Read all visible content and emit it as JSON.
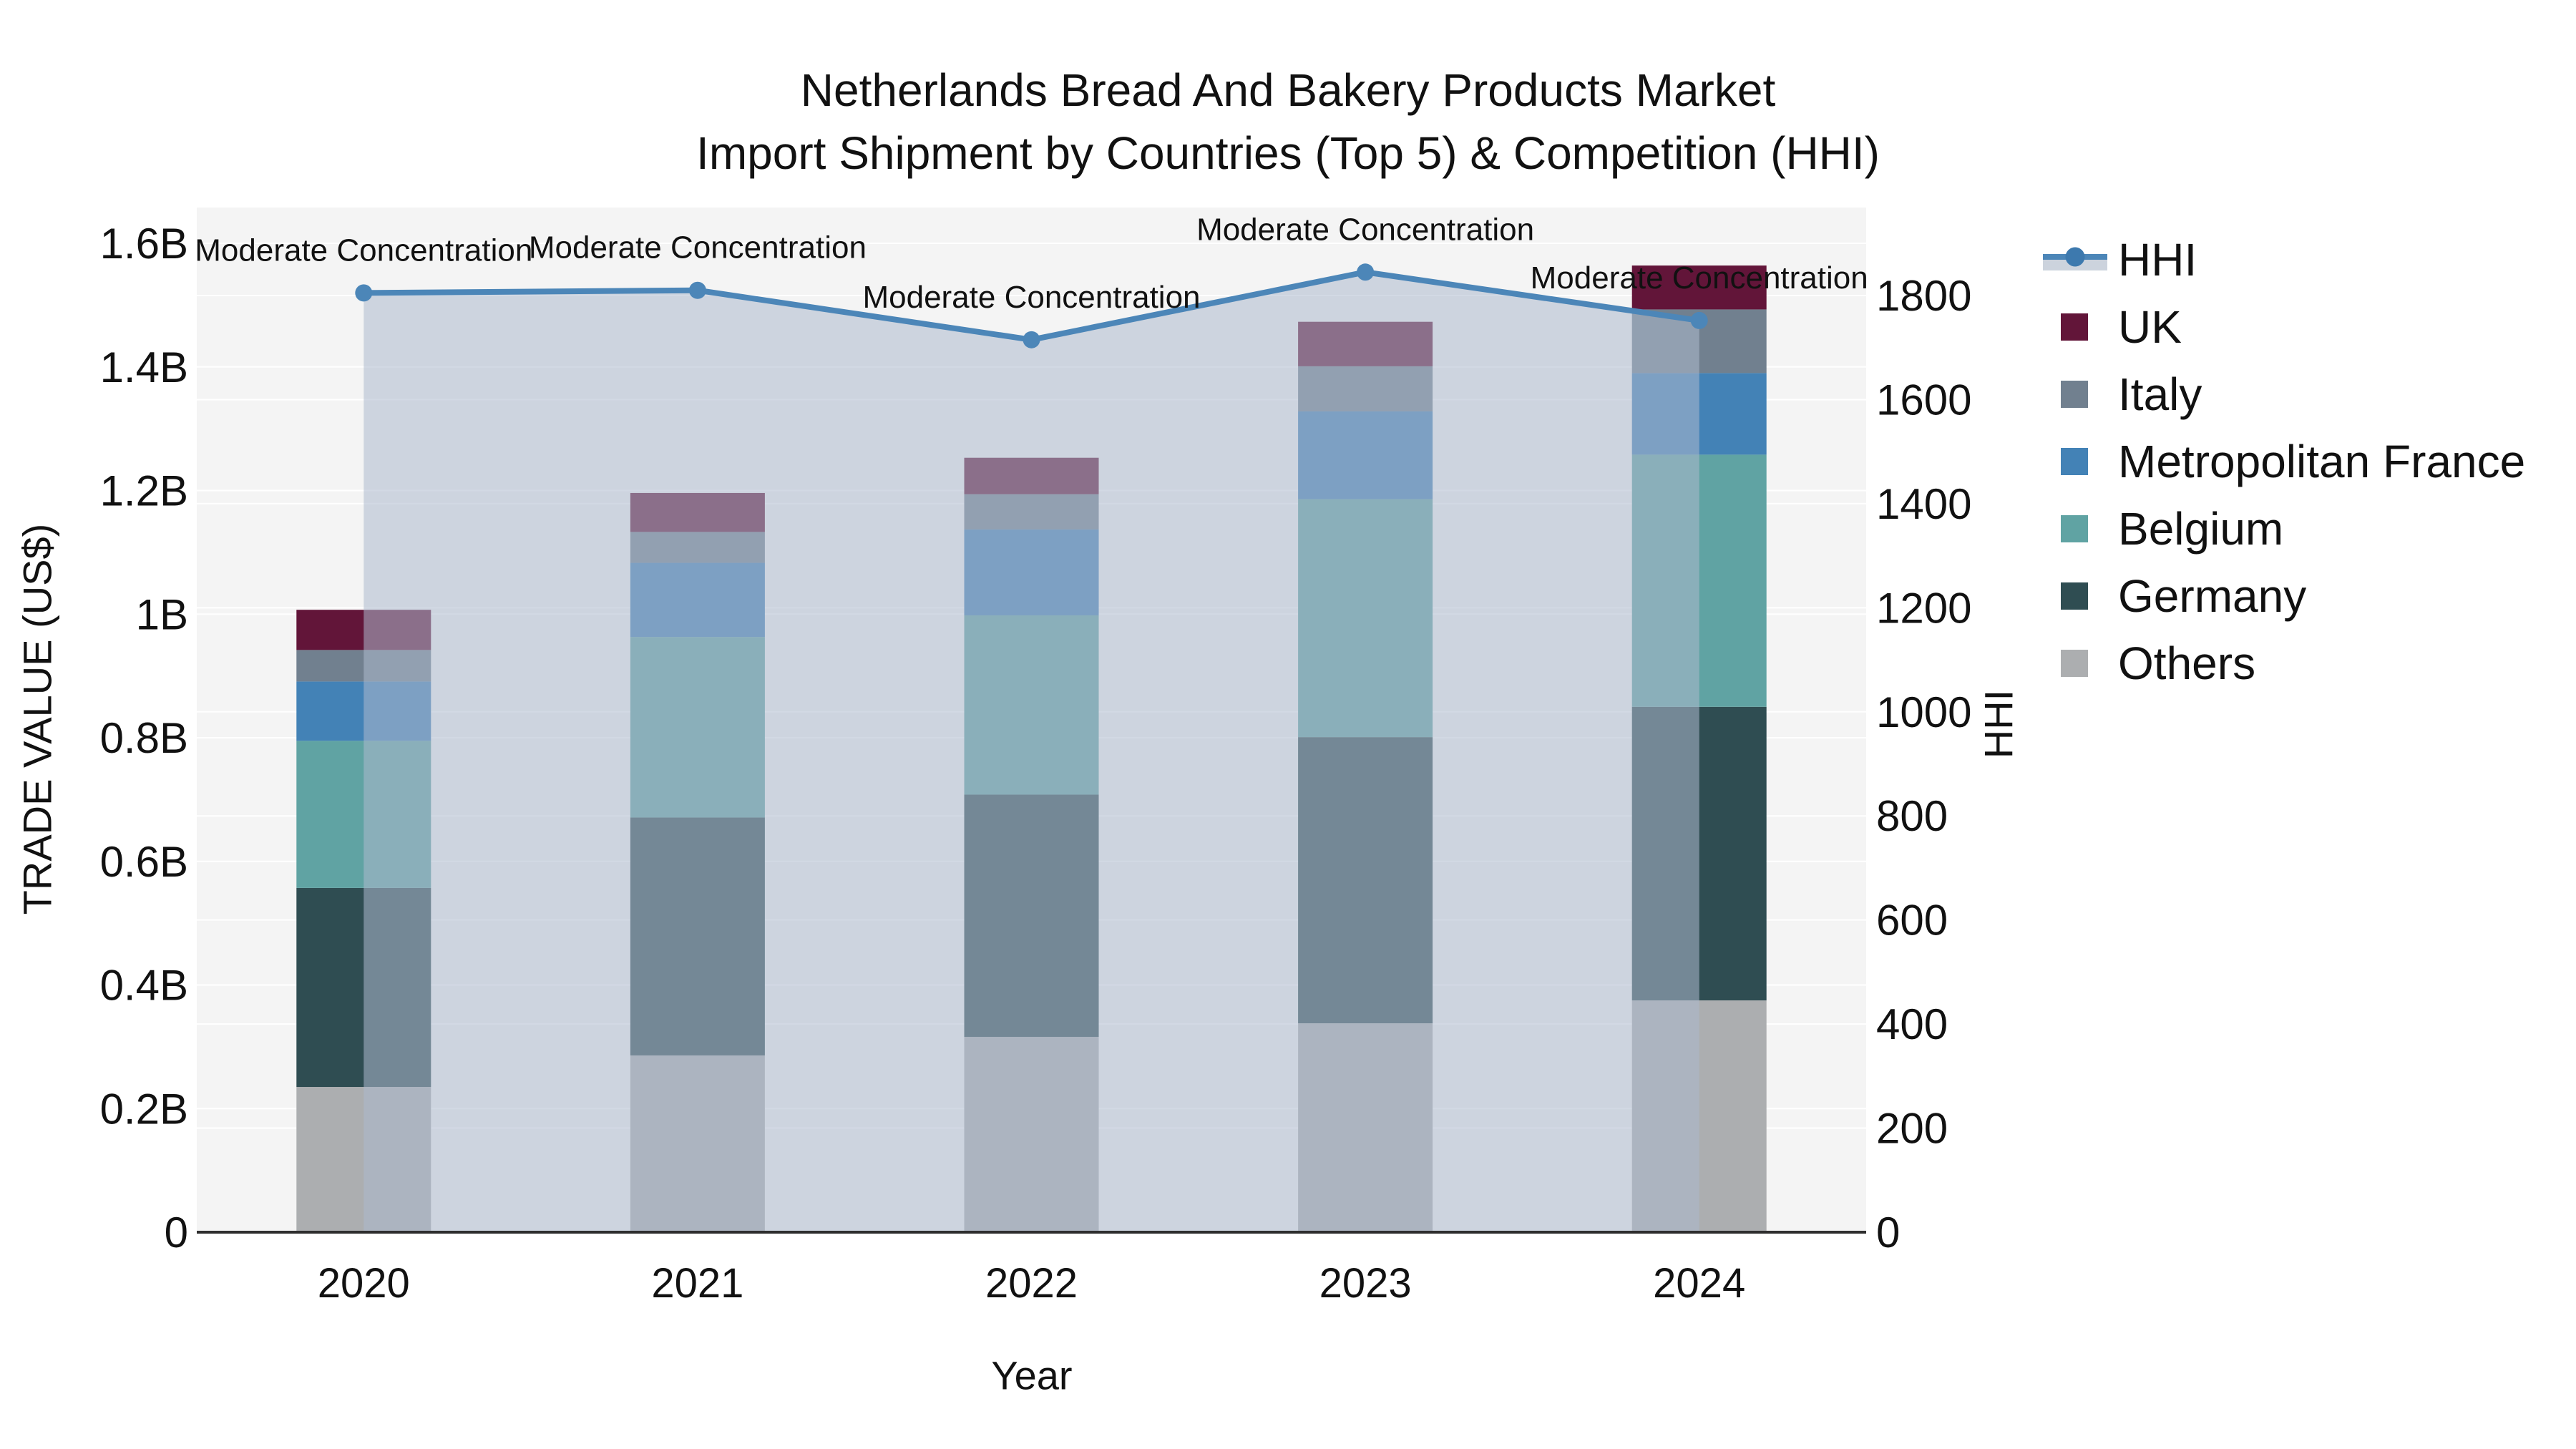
{
  "title": {
    "line1": "Netherlands Bread And Bakery Products Market",
    "line2": "Import Shipment by Countries (Top 5) & Competition (HHI)"
  },
  "axes": {
    "x": {
      "title": "Year",
      "tick_labels": [
        "2020",
        "2021",
        "2022",
        "2023",
        "2024"
      ]
    },
    "y_left": {
      "title": "TRADE VALUE (US$)",
      "tick_labels": [
        "0",
        "0.2B",
        "0.4B",
        "0.6B",
        "0.8B",
        "1B",
        "1.2B",
        "1.4B",
        "1.6B"
      ],
      "tick_values_billion": [
        0,
        0.2,
        0.4,
        0.6,
        0.8,
        1.0,
        1.2,
        1.4,
        1.6
      ]
    },
    "y_right": {
      "title": "HHI",
      "tick_labels": [
        "0",
        "200",
        "400",
        "600",
        "800",
        "1000",
        "1200",
        "1400",
        "1600",
        "1800"
      ],
      "tick_values": [
        0,
        200,
        400,
        600,
        800,
        1000,
        1200,
        1400,
        1600,
        1800
      ]
    }
  },
  "legend": {
    "items": [
      {
        "label": "HHI",
        "type": "line",
        "color": "#4c86b8"
      },
      {
        "label": "UK",
        "type": "swatch",
        "color": "#621539"
      },
      {
        "label": "Italy",
        "type": "swatch",
        "color": "#71808f"
      },
      {
        "label": "Metropolitan France",
        "type": "swatch",
        "color": "#4382b6"
      },
      {
        "label": "Belgium",
        "type": "swatch",
        "color": "#60a3a3"
      },
      {
        "label": "Germany",
        "type": "swatch",
        "color": "#2f4d52"
      },
      {
        "label": "Others",
        "type": "swatch",
        "color": "#acaeb0"
      }
    ]
  },
  "chart_data": {
    "type": "bar",
    "subtype": "stacked bars with HHI line overlay (secondary axis)",
    "categories": [
      "2020",
      "2021",
      "2022",
      "2023",
      "2024"
    ],
    "unit": "million US$",
    "series": [
      {
        "name": "Others",
        "color": "#acaeb0",
        "values": [
          235,
          286,
          316,
          338,
          375
        ]
      },
      {
        "name": "Germany",
        "color": "#2f4d52",
        "values": [
          322,
          385,
          392,
          463,
          475
        ]
      },
      {
        "name": "Belgium",
        "color": "#60a3a3",
        "values": [
          238,
          292,
          290,
          385,
          408
        ]
      },
      {
        "name": "Metropolitan France",
        "color": "#4382b6",
        "values": [
          96,
          120,
          139,
          142,
          132
        ]
      },
      {
        "name": "Italy",
        "color": "#71808f",
        "values": [
          51,
          50,
          57,
          73,
          103
        ]
      },
      {
        "name": "UK",
        "color": "#621539",
        "values": [
          65,
          63,
          59,
          72,
          71
        ]
      }
    ],
    "line_series": {
      "name": "HHI",
      "color": "#4c86b8",
      "area_fill": "rgba(173,185,205,0.55)",
      "axis": "right",
      "values": [
        1805,
        1810,
        1715,
        1845,
        1752
      ]
    },
    "annotations": [
      {
        "text": "Moderate Concentration",
        "category": "2020"
      },
      {
        "text": "Moderate Concentration",
        "category": "2021"
      },
      {
        "text": "Moderate Concentration",
        "category": "2022"
      },
      {
        "text": "Moderate Concentration",
        "category": "2023"
      },
      {
        "text": "Moderate Concentration",
        "category": "2024"
      }
    ],
    "xlabel": "Year",
    "ylabel_left": "TRADE VALUE (US$)",
    "ylabel_right": "HHI",
    "ylim_left_billion": [
      0,
      1.66
    ],
    "ylim_right": [
      0,
      1970
    ],
    "grid": true,
    "legend_position": "right",
    "plot_bg": "#f4f4f4",
    "grid_color": "#ffffff",
    "axis_line_color": "#2e2e2e",
    "tick_color": "#111111"
  }
}
